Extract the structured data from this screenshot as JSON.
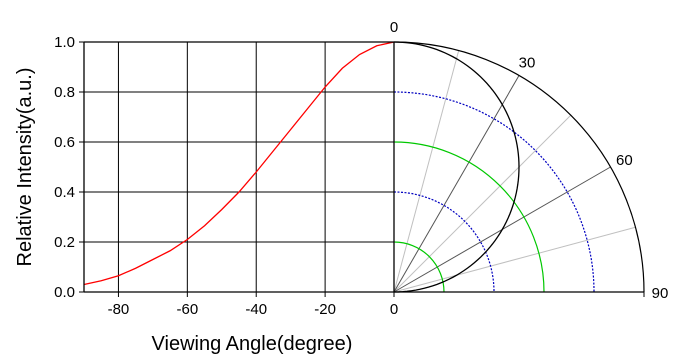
{
  "chart_data": {
    "type": "line",
    "title": "",
    "xlabel": "Viewing Angle(degree)",
    "ylabel": "Relative Intensity(a.u.)",
    "xlim": [
      -90,
      0
    ],
    "ylim": [
      0,
      1
    ],
    "x_ticks": [
      -80,
      -60,
      -40,
      -20,
      0
    ],
    "x_tick_labels": [
      "-80",
      "-60",
      "-40",
      "-20",
      "0"
    ],
    "y_ticks": [
      0,
      0.2,
      0.4,
      0.6,
      0.8,
      1.0
    ],
    "y_tick_labels": [
      "0.0",
      "0.2",
      "0.4",
      "0.6",
      "0.8",
      "1.0"
    ],
    "grid": true,
    "legend": "none",
    "series": [
      {
        "color": "#ff0000",
        "x": [
          -90,
          -85,
          -80,
          -75,
          -70,
          -65,
          -60,
          -55,
          -50,
          -45,
          -40,
          -35,
          -30,
          -25,
          -20,
          -15,
          -10,
          -5,
          0
        ],
        "y": [
          0.03,
          0.045,
          0.065,
          0.095,
          0.13,
          0.165,
          0.21,
          0.265,
          0.33,
          0.4,
          0.48,
          0.565,
          0.65,
          0.735,
          0.82,
          0.895,
          0.95,
          0.985,
          1.0
        ]
      }
    ],
    "polar": {
      "angle_labels": [
        "0",
        "30",
        "60",
        "90"
      ],
      "angle_label_values": [
        0,
        30,
        60,
        90
      ],
      "radial_rings": [
        0.2,
        0.4,
        0.6,
        0.8
      ],
      "ring_colors": [
        "#00c800",
        "#0000c0",
        "#00c800",
        "#0000c0"
      ],
      "major_spokes": [
        30,
        60
      ],
      "minor_spokes": [
        15,
        45,
        75
      ],
      "major_spoke_color": "#555555",
      "minor_spoke_color": "#c0c0c0",
      "pattern_color": "#000000",
      "pattern_shape": "cosine"
    }
  }
}
